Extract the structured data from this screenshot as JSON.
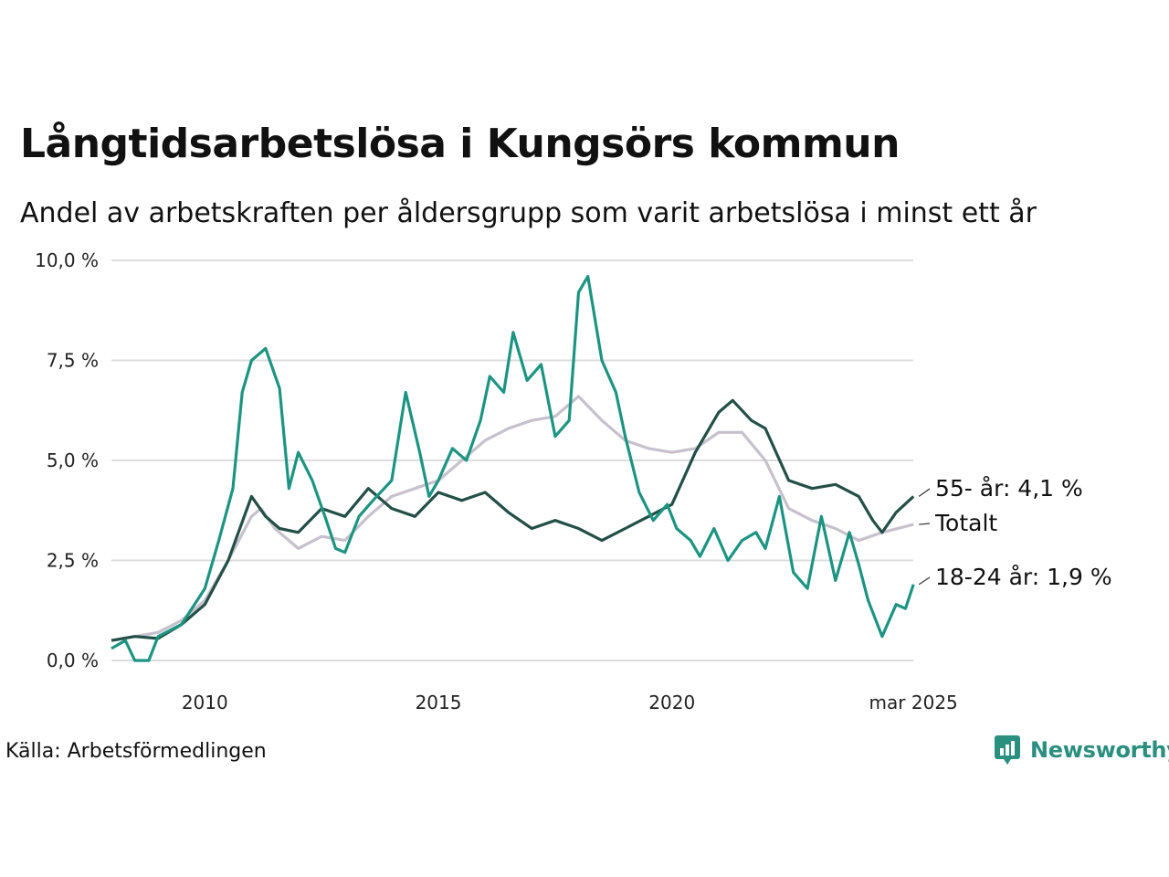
{
  "title": "Långtidsarbetslösa i Kungsörs kommun",
  "subtitle": "Andel av arbetskraften per åldersgrupp som varit arbetslösa i minst ett år",
  "source": "Källa: Arbetsförmedlingen",
  "brand": {
    "name": "Newsworthy",
    "icon": "newsworthy-logo-icon",
    "color": "#2a8f7f"
  },
  "chart_data": {
    "type": "line",
    "x_start": "2008-01",
    "x_end": "2025-03",
    "ylim": [
      0,
      10
    ],
    "y_ticks": [
      0,
      2.5,
      5,
      7.5,
      10
    ],
    "y_tick_labels": [
      "0,0 %",
      "2,5 %",
      "5,0 %",
      "7,5 %",
      "10,0 %"
    ],
    "x_ticks": [
      2010,
      2015,
      2020,
      2025.17
    ],
    "x_tick_labels": [
      "2010",
      "2015",
      "2020",
      "mar 2025"
    ],
    "grid": "horizontal",
    "series": [
      {
        "name": "Totalt",
        "color": "#c6c1cc",
        "end_label": "Totalt",
        "points": [
          [
            2008.0,
            0.5
          ],
          [
            2008.5,
            0.6
          ],
          [
            2009.0,
            0.7
          ],
          [
            2009.5,
            1.0
          ],
          [
            2010.0,
            1.5
          ],
          [
            2010.5,
            2.5
          ],
          [
            2011.0,
            3.6
          ],
          [
            2011.2,
            3.8
          ],
          [
            2011.5,
            3.3
          ],
          [
            2012.0,
            2.8
          ],
          [
            2012.5,
            3.1
          ],
          [
            2013.0,
            3.0
          ],
          [
            2013.5,
            3.6
          ],
          [
            2014.0,
            4.1
          ],
          [
            2014.5,
            4.3
          ],
          [
            2015.0,
            4.5
          ],
          [
            2015.5,
            5.0
          ],
          [
            2016.0,
            5.5
          ],
          [
            2016.5,
            5.8
          ],
          [
            2017.0,
            6.0
          ],
          [
            2017.5,
            6.1
          ],
          [
            2018.0,
            6.6
          ],
          [
            2018.5,
            6.0
          ],
          [
            2019.0,
            5.5
          ],
          [
            2019.5,
            5.3
          ],
          [
            2020.0,
            5.2
          ],
          [
            2020.5,
            5.3
          ],
          [
            2021.0,
            5.7
          ],
          [
            2021.5,
            5.7
          ],
          [
            2022.0,
            5.0
          ],
          [
            2022.5,
            3.8
          ],
          [
            2023.0,
            3.5
          ],
          [
            2023.5,
            3.3
          ],
          [
            2024.0,
            3.0
          ],
          [
            2024.5,
            3.2
          ],
          [
            2025.17,
            3.4
          ]
        ]
      },
      {
        "name": "55- år",
        "color": "#234f46",
        "end_label": "55- år: 4,1 %",
        "points": [
          [
            2008.0,
            0.5
          ],
          [
            2008.5,
            0.6
          ],
          [
            2009.0,
            0.55
          ],
          [
            2009.5,
            0.9
          ],
          [
            2010.0,
            1.4
          ],
          [
            2010.5,
            2.5
          ],
          [
            2011.0,
            4.1
          ],
          [
            2011.3,
            3.6
          ],
          [
            2011.6,
            3.3
          ],
          [
            2012.0,
            3.2
          ],
          [
            2012.5,
            3.8
          ],
          [
            2013.0,
            3.6
          ],
          [
            2013.5,
            4.3
          ],
          [
            2014.0,
            3.8
          ],
          [
            2014.5,
            3.6
          ],
          [
            2015.0,
            4.2
          ],
          [
            2015.5,
            4.0
          ],
          [
            2016.0,
            4.2
          ],
          [
            2016.5,
            3.7
          ],
          [
            2017.0,
            3.3
          ],
          [
            2017.5,
            3.5
          ],
          [
            2018.0,
            3.3
          ],
          [
            2018.5,
            3.0
          ],
          [
            2019.0,
            3.3
          ],
          [
            2019.5,
            3.6
          ],
          [
            2020.0,
            3.9
          ],
          [
            2020.5,
            5.2
          ],
          [
            2021.0,
            6.2
          ],
          [
            2021.3,
            6.5
          ],
          [
            2021.7,
            6.0
          ],
          [
            2022.0,
            5.8
          ],
          [
            2022.5,
            4.5
          ],
          [
            2023.0,
            4.3
          ],
          [
            2023.5,
            4.4
          ],
          [
            2024.0,
            4.1
          ],
          [
            2024.3,
            3.5
          ],
          [
            2024.5,
            3.2
          ],
          [
            2024.8,
            3.7
          ],
          [
            2025.17,
            4.1
          ]
        ]
      },
      {
        "name": "18-24 år",
        "color": "#1d9482",
        "end_label": "18-24 år: 1,9 %",
        "points": [
          [
            2008.0,
            0.3
          ],
          [
            2008.3,
            0.5
          ],
          [
            2008.5,
            0.0
          ],
          [
            2008.8,
            0.0
          ],
          [
            2009.0,
            0.6
          ],
          [
            2009.5,
            0.9
          ],
          [
            2010.0,
            1.8
          ],
          [
            2010.3,
            3.0
          ],
          [
            2010.6,
            4.3
          ],
          [
            2010.8,
            6.7
          ],
          [
            2011.0,
            7.5
          ],
          [
            2011.3,
            7.8
          ],
          [
            2011.6,
            6.8
          ],
          [
            2011.8,
            4.3
          ],
          [
            2012.0,
            5.2
          ],
          [
            2012.3,
            4.5
          ],
          [
            2012.6,
            3.5
          ],
          [
            2012.8,
            2.8
          ],
          [
            2013.0,
            2.7
          ],
          [
            2013.3,
            3.6
          ],
          [
            2013.6,
            4.0
          ],
          [
            2014.0,
            4.5
          ],
          [
            2014.3,
            6.7
          ],
          [
            2014.6,
            5.2
          ],
          [
            2014.8,
            4.1
          ],
          [
            2015.0,
            4.5
          ],
          [
            2015.3,
            5.3
          ],
          [
            2015.6,
            5.0
          ],
          [
            2015.9,
            6.0
          ],
          [
            2016.1,
            7.1
          ],
          [
            2016.4,
            6.7
          ],
          [
            2016.6,
            8.2
          ],
          [
            2016.9,
            7.0
          ],
          [
            2017.2,
            7.4
          ],
          [
            2017.5,
            5.6
          ],
          [
            2017.8,
            6.0
          ],
          [
            2018.0,
            9.2
          ],
          [
            2018.2,
            9.6
          ],
          [
            2018.5,
            7.5
          ],
          [
            2018.8,
            6.7
          ],
          [
            2019.0,
            5.6
          ],
          [
            2019.3,
            4.2
          ],
          [
            2019.6,
            3.5
          ],
          [
            2019.9,
            3.9
          ],
          [
            2020.1,
            3.3
          ],
          [
            2020.4,
            3.0
          ],
          [
            2020.6,
            2.6
          ],
          [
            2020.9,
            3.3
          ],
          [
            2021.2,
            2.5
          ],
          [
            2021.5,
            3.0
          ],
          [
            2021.8,
            3.2
          ],
          [
            2022.0,
            2.8
          ],
          [
            2022.3,
            4.1
          ],
          [
            2022.6,
            2.2
          ],
          [
            2022.9,
            1.8
          ],
          [
            2023.2,
            3.6
          ],
          [
            2023.5,
            2.0
          ],
          [
            2023.8,
            3.2
          ],
          [
            2024.0,
            2.4
          ],
          [
            2024.2,
            1.5
          ],
          [
            2024.5,
            0.6
          ],
          [
            2024.8,
            1.4
          ],
          [
            2025.0,
            1.3
          ],
          [
            2025.17,
            1.9
          ]
        ]
      }
    ]
  }
}
